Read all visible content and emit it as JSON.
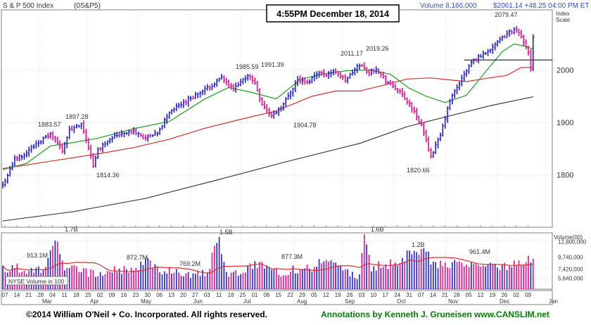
{
  "header": {
    "index_name": "S & P 500 Index",
    "symbol": "(0S&P5)",
    "volume": "Volume 8,166,000",
    "price_change": "$2061.14 +48.25 04:00 PM ET",
    "timestamp": "4:55PM December 18, 2014",
    "scale_label_1": "Index",
    "scale_label_2": "Scale"
  },
  "footer": {
    "copyright": "©2014 William O'Neil + Co. Incorporated. All rights reserved.",
    "annotations": "Annotations by Kenneth J. Gruneisen www.CANSLIM.net"
  },
  "volume_panel": {
    "legend": "NYSE Volume in 100",
    "axis_title": "Volume(00)",
    "tick_labels": [
      "12,800,000",
      "9,740,000",
      "7,420,000",
      "5,640,000"
    ]
  },
  "colors": {
    "up": "#2020d0",
    "down": "#e0108c",
    "ma_50": "#d83030",
    "ma_200": "#404040",
    "ma_10": "#20a020",
    "frame": "#7f7f7f",
    "grid": "#c8c8c8",
    "label_blue": "#3050c0",
    "footer_green": "#008000"
  },
  "chart_data": {
    "type": "ohlc",
    "title": "S & P 500 Index",
    "price_axis": {
      "ticks": [
        1800,
        1900,
        2000
      ],
      "ylim": [
        1700,
        2115
      ],
      "label": "Index Scale"
    },
    "volume_axis": {
      "ticks": [
        5640000,
        7420000,
        9740000,
        12800000
      ],
      "ylim": [
        3500000,
        14500000
      ]
    },
    "months": [
      "Mar",
      "Apr",
      "May",
      "Jun",
      "Jul",
      "Aug",
      "Sep",
      "Oct",
      "Nov",
      "Dec",
      "Jan"
    ],
    "x_tick_labels": [
      "07",
      "14",
      "21",
      "28",
      "04",
      "11",
      "18",
      "25",
      "02",
      "09",
      "16",
      "23",
      "30",
      "06",
      "13",
      "20",
      "27",
      "03",
      "11",
      "18",
      "25",
      "01",
      "08",
      "15",
      "22",
      "29",
      "05",
      "12",
      "19",
      "26",
      "03",
      "10",
      "17",
      "24",
      "31",
      "07",
      "14",
      "21",
      "28",
      "05",
      "12",
      "19",
      "26",
      "02",
      "09"
    ],
    "price_labels": [
      {
        "text": "1883.57",
        "value": 1883.57
      },
      {
        "text": "1897.28",
        "value": 1897.28
      },
      {
        "text": "1814.36",
        "value": 1814.36
      },
      {
        "text": "1985.59",
        "value": 1985.59
      },
      {
        "text": "1991.39",
        "value": 1991.39
      },
      {
        "text": "1904.78",
        "value": 1904.78
      },
      {
        "text": "2011.17",
        "value": 2011.17
      },
      {
        "text": "2019.26",
        "value": 2019.26
      },
      {
        "text": "1820.66",
        "value": 1820.66
      },
      {
        "text": "2079.47",
        "value": 2079.47
      }
    ],
    "volume_labels": [
      {
        "text": "913.1M"
      },
      {
        "text": "1.7B"
      },
      {
        "text": "872.7M"
      },
      {
        "text": "769.2M"
      },
      {
        "text": "1.5B"
      },
      {
        "text": "877.3M"
      },
      {
        "text": "1.6B"
      },
      {
        "text": "1.2B"
      },
      {
        "text": "961.4M"
      }
    ],
    "reference_line": 2019.26,
    "series": [
      {
        "name": "50-day",
        "points": [
          [
            0,
            1812
          ],
          [
            20,
            1826
          ],
          [
            40,
            1840
          ],
          [
            55,
            1852
          ],
          [
            70,
            1868
          ],
          [
            85,
            1889
          ],
          [
            100,
            1906
          ],
          [
            115,
            1922
          ],
          [
            130,
            1950
          ],
          [
            140,
            1960
          ],
          [
            150,
            1960
          ],
          [
            160,
            1971
          ],
          [
            170,
            1983
          ],
          [
            180,
            1985
          ],
          [
            195,
            1978
          ],
          [
            203,
            1984
          ],
          [
            212,
            1990
          ],
          [
            218,
            2005
          ],
          [
            223,
            2005
          ]
        ]
      },
      {
        "name": "200-day",
        "points": [
          [
            0,
            1712
          ],
          [
            30,
            1730
          ],
          [
            60,
            1755
          ],
          [
            90,
            1790
          ],
          [
            120,
            1826
          ],
          [
            150,
            1860
          ],
          [
            170,
            1892
          ],
          [
            190,
            1915
          ],
          [
            205,
            1932
          ],
          [
            223,
            1949
          ]
        ]
      },
      {
        "name": "10-week",
        "points": [
          [
            0,
            1810
          ],
          [
            10,
            1822
          ],
          [
            20,
            1855
          ],
          [
            30,
            1862
          ],
          [
            40,
            1870
          ],
          [
            55,
            1888
          ],
          [
            70,
            1902
          ],
          [
            85,
            1945
          ],
          [
            95,
            1967
          ],
          [
            105,
            1957
          ],
          [
            115,
            1945
          ],
          [
            125,
            1982
          ],
          [
            135,
            1993
          ],
          [
            145,
            1999
          ],
          [
            155,
            2000
          ],
          [
            163,
            1992
          ],
          [
            171,
            1965
          ],
          [
            178,
            1950
          ],
          [
            186,
            1938
          ],
          [
            195,
            1952
          ],
          [
            203,
            1997
          ],
          [
            210,
            2035
          ],
          [
            215,
            2050
          ],
          [
            220,
            2045
          ],
          [
            223,
            2040
          ]
        ]
      }
    ],
    "price_anchors": [
      [
        0,
        1780
      ],
      [
        5,
        1830
      ],
      [
        10,
        1842
      ],
      [
        14,
        1860
      ],
      [
        20,
        1878
      ],
      [
        25,
        1848
      ],
      [
        28,
        1885
      ],
      [
        33,
        1895
      ],
      [
        37,
        1838
      ],
      [
        38,
        1815
      ],
      [
        40,
        1848
      ],
      [
        45,
        1870
      ],
      [
        50,
        1880
      ],
      [
        55,
        1883
      ],
      [
        60,
        1870
      ],
      [
        65,
        1878
      ],
      [
        70,
        1920
      ],
      [
        75,
        1935
      ],
      [
        80,
        1950
      ],
      [
        85,
        1962
      ],
      [
        92,
        1985
      ],
      [
        97,
        1962
      ],
      [
        103,
        1991
      ],
      [
        106,
        1975
      ],
      [
        109,
        1935
      ],
      [
        113,
        1912
      ],
      [
        118,
        1935
      ],
      [
        124,
        1982
      ],
      [
        128,
        1975
      ],
      [
        132,
        1995
      ],
      [
        136,
        1992
      ],
      [
        140,
        1998
      ],
      [
        144,
        1980
      ],
      [
        150,
        2011
      ],
      [
        154,
        1995
      ],
      [
        157,
        2003
      ],
      [
        161,
        1980
      ],
      [
        166,
        1962
      ],
      [
        171,
        1935
      ],
      [
        176,
        1895
      ],
      [
        180,
        1835
      ],
      [
        184,
        1875
      ],
      [
        188,
        1942
      ],
      [
        192,
        1975
      ],
      [
        197,
        2015
      ],
      [
        203,
        2034
      ],
      [
        208,
        2052
      ],
      [
        212,
        2070
      ],
      [
        216,
        2079
      ],
      [
        219,
        2055
      ],
      [
        221,
        2035
      ],
      [
        222,
        2005
      ],
      [
        223,
        2061
      ]
    ],
    "volume_anchors": [
      [
        0,
        7300000
      ],
      [
        6,
        7700000
      ],
      [
        12,
        6900000
      ],
      [
        18,
        7400000
      ],
      [
        22,
        13000000
      ],
      [
        26,
        7800000
      ],
      [
        32,
        7100000
      ],
      [
        40,
        6300000
      ],
      [
        48,
        7300000
      ],
      [
        56,
        7000000
      ],
      [
        60,
        9200000
      ],
      [
        66,
        7200000
      ],
      [
        72,
        6900000
      ],
      [
        80,
        6400000
      ],
      [
        86,
        6800000
      ],
      [
        91,
        13700000
      ],
      [
        94,
        6300000
      ],
      [
        100,
        7000000
      ],
      [
        108,
        8700000
      ],
      [
        116,
        6600000
      ],
      [
        123,
        7400000
      ],
      [
        130,
        7800000
      ],
      [
        133,
        8400000
      ],
      [
        138,
        8900000
      ],
      [
        144,
        6800000
      ],
      [
        150,
        6100000
      ],
      [
        152,
        14200000
      ],
      [
        155,
        7900000
      ],
      [
        162,
        8100000
      ],
      [
        167,
        9200000
      ],
      [
        172,
        10900000
      ],
      [
        176,
        11700000
      ],
      [
        180,
        9100000
      ],
      [
        185,
        8100000
      ],
      [
        190,
        8900000
      ],
      [
        196,
        7700000
      ],
      [
        202,
        8400000
      ],
      [
        208,
        7400000
      ],
      [
        212,
        7900000
      ],
      [
        216,
        9100000
      ],
      [
        220,
        8800000
      ],
      [
        223,
        9900000
      ]
    ]
  }
}
